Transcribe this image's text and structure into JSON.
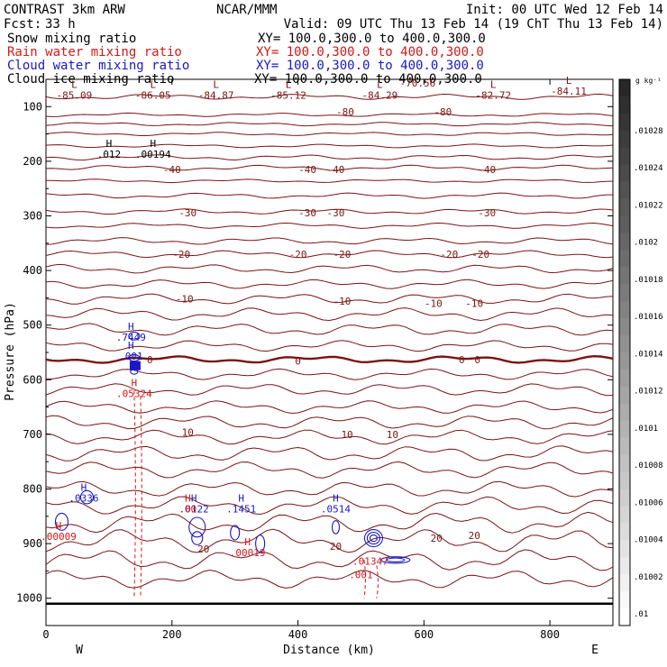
{
  "header": {
    "title": "CONTRAST  3km ARW",
    "center": "NCAR/MMM",
    "init": "Init: 00 UTC Wed 12 Feb 14",
    "fcst_label": "Fcst:",
    "fcst_value": "33 h",
    "valid": "Valid: 09 UTC Thu 13 Feb 14 (19 ChT Thu 13 Feb 14)"
  },
  "fields": [
    {
      "name": "Snow mixing ratio",
      "xy": "XY= 100.0,300.0 to 400.0,300.0",
      "color": "#000000"
    },
    {
      "name": "Rain water mixing ratio",
      "xy": "XY= 100.0,300.0 to 400.0,300.0",
      "color": "#d01818"
    },
    {
      "name": "Cloud water mixing ratio",
      "xy": "XY= 100.0,300.0 to 400.0,300.0",
      "color": "#1818c8"
    },
    {
      "name": "Cloud ice mixing ratio",
      "xy": "XY= 100.0,300.0 to 400.0,300.0",
      "color": "#000000"
    }
  ],
  "colorbar": {
    "unit": "g kg⁻¹",
    "labels": [
      ".01028",
      ".01024",
      ".01022",
      ".0102",
      ".01018",
      ".01016",
      ".01014",
      ".01012",
      ".0101",
      ".01008",
      ".01006",
      ".01004",
      ".01002",
      ".01"
    ]
  },
  "chart_data": {
    "type": "contour",
    "xlabel": "Distance (km)",
    "ylabel": "Pressure (hPa)",
    "xlim": [
      0,
      900
    ],
    "ylim": [
      1050,
      50
    ],
    "x_ticks": [
      0,
      200,
      400,
      600,
      800
    ],
    "y_ticks": [
      100,
      200,
      300,
      400,
      500,
      600,
      700,
      800,
      900,
      1000
    ],
    "x_end_labels": {
      "left": "W",
      "right": "E"
    },
    "temperature_contours": {
      "color": "#7a1414",
      "lines": [
        {
          "p": 82,
          "amp": 3
        },
        {
          "p": 115,
          "amp": 2
        },
        {
          "p": 132,
          "amp": 2
        },
        {
          "p": 150,
          "amp": 2
        },
        {
          "p": 172,
          "amp": 2
        },
        {
          "p": 193,
          "amp": 3
        },
        {
          "p": 212,
          "amp": 3
        },
        {
          "p": 236,
          "amp": 2
        },
        {
          "p": 263,
          "amp": 3
        },
        {
          "p": 292,
          "amp": 3
        },
        {
          "p": 318,
          "amp": 3
        },
        {
          "p": 346,
          "amp": 4
        },
        {
          "p": 370,
          "amp": 4
        },
        {
          "p": 397,
          "amp": 5
        },
        {
          "p": 425,
          "amp": 5
        },
        {
          "p": 452,
          "amp": 6
        },
        {
          "p": 480,
          "amp": 7
        },
        {
          "p": 508,
          "amp": 7
        },
        {
          "p": 538,
          "amp": 6
        },
        {
          "p": 563,
          "amp": 4,
          "bold": true
        },
        {
          "p": 590,
          "amp": 6
        },
        {
          "p": 618,
          "amp": 7
        },
        {
          "p": 650,
          "amp": 7
        },
        {
          "p": 678,
          "amp": 8
        },
        {
          "p": 705,
          "amp": 8
        },
        {
          "p": 735,
          "amp": 9
        },
        {
          "p": 765,
          "amp": 9
        },
        {
          "p": 800,
          "amp": 9
        },
        {
          "p": 830,
          "amp": 10
        },
        {
          "p": 862,
          "amp": 12
        },
        {
          "p": 895,
          "amp": 13
        },
        {
          "p": 930,
          "amp": 12
        },
        {
          "p": 965,
          "amp": 10
        },
        {
          "p": 1010,
          "amp": 0,
          "ground": true
        }
      ],
      "labels": [
        {
          "x": 200,
          "p": 215,
          "text": "-40"
        },
        {
          "x": 415,
          "p": 215,
          "text": "-40"
        },
        {
          "x": 460,
          "p": 215,
          "text": "-40"
        },
        {
          "x": 700,
          "p": 215,
          "text": "-40"
        },
        {
          "x": 225,
          "p": 294,
          "text": "-30"
        },
        {
          "x": 415,
          "p": 294,
          "text": "-30"
        },
        {
          "x": 460,
          "p": 294,
          "text": "-30"
        },
        {
          "x": 700,
          "p": 294,
          "text": "-30"
        },
        {
          "x": 215,
          "p": 370,
          "text": "-20"
        },
        {
          "x": 400,
          "p": 370,
          "text": "-20"
        },
        {
          "x": 470,
          "p": 370,
          "text": "-20"
        },
        {
          "x": 640,
          "p": 370,
          "text": "-20"
        },
        {
          "x": 690,
          "p": 370,
          "text": "-20"
        },
        {
          "x": 220,
          "p": 452,
          "text": "-10"
        },
        {
          "x": 470,
          "p": 456,
          "text": "-10"
        },
        {
          "x": 615,
          "p": 460,
          "text": "-10"
        },
        {
          "x": 680,
          "p": 460,
          "text": "-10"
        },
        {
          "x": 165,
          "p": 563,
          "text": "0"
        },
        {
          "x": 400,
          "p": 566,
          "text": "0"
        },
        {
          "x": 660,
          "p": 563,
          "text": "0"
        },
        {
          "x": 685,
          "p": 563,
          "text": "0"
        },
        {
          "x": 225,
          "p": 696,
          "text": "10"
        },
        {
          "x": 478,
          "p": 700,
          "text": "10"
        },
        {
          "x": 550,
          "p": 700,
          "text": "10"
        },
        {
          "x": 250,
          "p": 910,
          "text": "20"
        },
        {
          "x": 460,
          "p": 905,
          "text": "20"
        },
        {
          "x": 620,
          "p": 890,
          "text": "20"
        },
        {
          "x": 680,
          "p": 885,
          "text": "20"
        }
      ],
      "extrema": [
        {
          "x": 45,
          "p": 82,
          "type": "L",
          "value": "-85.09"
        },
        {
          "x": 170,
          "p": 82,
          "type": "L",
          "value": "-86.05"
        },
        {
          "x": 270,
          "p": 82,
          "type": "L",
          "value": "-84.87"
        },
        {
          "x": 385,
          "p": 82,
          "type": "L",
          "value": "-85.12"
        },
        {
          "x": 530,
          "p": 82,
          "type": "L",
          "value": "-84.29"
        },
        {
          "x": 710,
          "p": 82,
          "type": "L",
          "value": "-82.72"
        },
        {
          "x": 830,
          "p": 75,
          "type": "L",
          "value": "-84.11"
        },
        {
          "x": 590,
          "p": 60,
          "type": "",
          "value": "-70.56"
        },
        {
          "x": 475,
          "p": 113,
          "type": "",
          "value": "-80"
        },
        {
          "x": 630,
          "p": 113,
          "type": "",
          "value": "-80"
        }
      ]
    },
    "snow_ice_extrema": [
      {
        "x": 100,
        "p": 190,
        "type": "H",
        "value": ".012"
      },
      {
        "x": 170,
        "p": 190,
        "type": "H",
        "value": ".00194"
      }
    ],
    "cloud_water": {
      "color": "#1818c8",
      "extrema": [
        {
          "x": 135,
          "p": 525,
          "type": "H",
          "value": ".7449"
        },
        {
          "x": 135,
          "p": 560,
          "type": "H",
          "value": ".001"
        },
        {
          "x": 60,
          "p": 820,
          "type": "H",
          "value": ".0336"
        },
        {
          "x": 235,
          "p": 840,
          "type": "H",
          "value": ".0122"
        },
        {
          "x": 310,
          "p": 840,
          "type": "H",
          "value": ".1451"
        },
        {
          "x": 460,
          "p": 840,
          "type": "H",
          "value": ".0514"
        }
      ]
    },
    "rain_water": {
      "color": "#d01818",
      "extrema": [
        {
          "x": 140,
          "p": 628,
          "type": "H",
          "value": ".05324"
        },
        {
          "x": 20,
          "p": 890,
          "type": "H",
          "value": ".00009"
        },
        {
          "x": 225,
          "p": 840,
          "type": "H",
          "value": ".00"
        },
        {
          "x": 320,
          "p": 920,
          "type": "H",
          "value": ".00019"
        },
        {
          "x": 515,
          "p": 935,
          "type": "",
          "value": ".01347"
        },
        {
          "x": 500,
          "p": 960,
          "type": "",
          "value": ".001"
        }
      ]
    }
  }
}
